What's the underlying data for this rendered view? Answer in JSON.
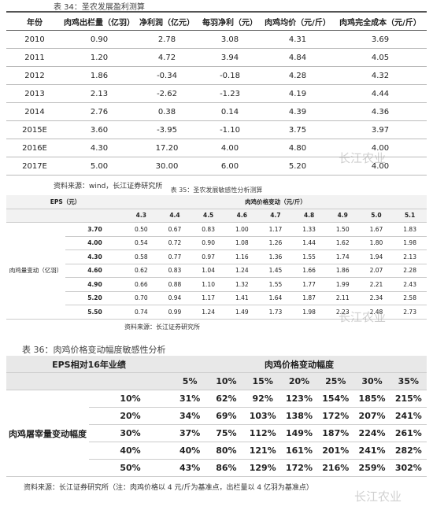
{
  "table34": {
    "title": "表 34：圣农发展盈利测算",
    "headers": [
      "年份",
      "肉鸡出栏量（亿羽）",
      "净利润（亿元）",
      "每羽净利（元）",
      "肉鸡均价（元/斤）",
      "肉鸡完全成本（元/斤）"
    ],
    "rows": [
      [
        "2010",
        "0.90",
        "2.78",
        "3.08",
        "4.31",
        "3.69"
      ],
      [
        "2011",
        "1.20",
        "4.72",
        "3.94",
        "4.84",
        "4.05"
      ],
      [
        "2012",
        "1.86",
        "-0.34",
        "-0.18",
        "4.28",
        "4.32"
      ],
      [
        "2013",
        "2.13",
        "-2.62",
        "-1.23",
        "4.19",
        "4.44"
      ],
      [
        "2014",
        "2.76",
        "0.38",
        "0.14",
        "4.39",
        "4.36"
      ],
      [
        "2015E",
        "3.60",
        "-3.95",
        "-1.10",
        "3.75",
        "3.97"
      ],
      [
        "2016E",
        "4.30",
        "17.20",
        "4.00",
        "4.80",
        "4.00"
      ],
      [
        "2017E",
        "5.00",
        "30.00",
        "6.00",
        "5.20",
        "4.00"
      ]
    ],
    "source": "资料来源：wind，长江证券研究所"
  },
  "table35": {
    "title": "表 35：圣农发展敏感性分析测算",
    "corner": "EPS（元）",
    "col_group": "肉鸡价格变动（元/斤）",
    "row_group": "肉鸡量变动（亿羽）",
    "columns": [
      "4.3",
      "4.4",
      "4.5",
      "4.6",
      "4.7",
      "4.8",
      "4.9",
      "5.0",
      "5.1"
    ],
    "rows": [
      {
        "label": "3.70",
        "values": [
          "0.50",
          "0.67",
          "0.83",
          "1.00",
          "1.17",
          "1.33",
          "1.50",
          "1.67",
          "1.83"
        ]
      },
      {
        "label": "4.00",
        "values": [
          "0.54",
          "0.72",
          "0.90",
          "1.08",
          "1.26",
          "1.44",
          "1.62",
          "1.80",
          "1.98"
        ]
      },
      {
        "label": "4.30",
        "values": [
          "0.58",
          "0.77",
          "0.97",
          "1.16",
          "1.36",
          "1.55",
          "1.74",
          "1.94",
          "2.13"
        ]
      },
      {
        "label": "4.60",
        "values": [
          "0.62",
          "0.83",
          "1.04",
          "1.24",
          "1.45",
          "1.66",
          "1.86",
          "2.07",
          "2.28"
        ]
      },
      {
        "label": "4.90",
        "values": [
          "0.66",
          "0.88",
          "1.10",
          "1.32",
          "1.55",
          "1.77",
          "1.99",
          "2.21",
          "2.43"
        ]
      },
      {
        "label": "5.20",
        "values": [
          "0.70",
          "0.94",
          "1.17",
          "1.41",
          "1.64",
          "1.87",
          "2.11",
          "2.34",
          "2.58"
        ]
      },
      {
        "label": "5.50",
        "values": [
          "0.74",
          "0.99",
          "1.24",
          "1.49",
          "1.73",
          "1.98",
          "2.23",
          "2.48",
          "2.73"
        ]
      }
    ],
    "source": "资料来源：长江证券研究所"
  },
  "table36": {
    "title": "表 36：肉鸡价格变动幅度敏感性分析",
    "corner": "EPS相对16年业绩",
    "col_group": "肉鸡价格变动幅度",
    "row_group": "肉鸡屠宰量变动幅度",
    "columns": [
      "5%",
      "10%",
      "15%",
      "20%",
      "25%",
      "30%",
      "35%"
    ],
    "rows": [
      {
        "label": "10%",
        "values": [
          "31%",
          "62%",
          "92%",
          "123%",
          "154%",
          "185%",
          "215%"
        ]
      },
      {
        "label": "20%",
        "values": [
          "34%",
          "69%",
          "103%",
          "138%",
          "172%",
          "207%",
          "241%"
        ]
      },
      {
        "label": "30%",
        "values": [
          "37%",
          "75%",
          "112%",
          "149%",
          "187%",
          "224%",
          "261%"
        ]
      },
      {
        "label": "40%",
        "values": [
          "40%",
          "80%",
          "121%",
          "161%",
          "201%",
          "241%",
          "282%"
        ]
      },
      {
        "label": "50%",
        "values": [
          "43%",
          "86%",
          "129%",
          "172%",
          "216%",
          "259%",
          "302%"
        ]
      }
    ],
    "source": "资料来源：长江证券研究所（注：肉鸡价格以 4 元/斤为基准点，出栏量以 4 亿羽为基准点）"
  },
  "watermark": "长江农业"
}
